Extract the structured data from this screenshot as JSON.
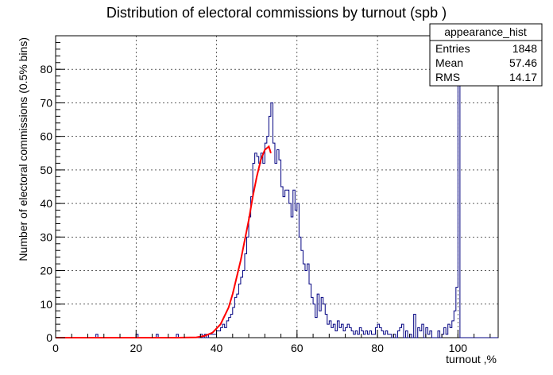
{
  "chart_data": {
    "type": "bar",
    "title": "Distribution of electoral commissions by turnout (spb )",
    "xlabel": "turnout ,%",
    "ylabel": "Number of electoral commissions (0.5% bins)",
    "xlim": [
      0,
      110
    ],
    "ylim": [
      0,
      90
    ],
    "x_ticks": [
      "0",
      "20",
      "40",
      "60",
      "80",
      "100"
    ],
    "y_ticks": [
      "0",
      "10",
      "20",
      "30",
      "40",
      "50",
      "60",
      "70",
      "80"
    ],
    "grid": true,
    "bin_width": 0.5,
    "histogram_bins": [
      [
        10,
        1
      ],
      [
        20,
        1
      ],
      [
        25,
        1
      ],
      [
        30,
        1
      ],
      [
        36,
        1
      ],
      [
        37,
        1
      ],
      [
        38,
        1
      ],
      [
        38.5,
        1
      ],
      [
        39,
        1
      ],
      [
        39.5,
        1
      ],
      [
        40,
        2
      ],
      [
        40.5,
        2
      ],
      [
        41,
        3
      ],
      [
        41.5,
        4
      ],
      [
        42,
        3
      ],
      [
        42.5,
        5
      ],
      [
        43,
        6
      ],
      [
        43.5,
        7
      ],
      [
        44,
        9
      ],
      [
        44.5,
        12
      ],
      [
        45,
        13
      ],
      [
        45.5,
        16
      ],
      [
        46,
        18
      ],
      [
        46.5,
        20
      ],
      [
        47,
        25
      ],
      [
        47.5,
        30
      ],
      [
        48,
        36
      ],
      [
        48.5,
        42
      ],
      [
        49,
        52
      ],
      [
        49.5,
        55
      ],
      [
        50,
        54
      ],
      [
        50.5,
        52
      ],
      [
        51,
        55
      ],
      [
        51.5,
        52
      ],
      [
        52,
        58
      ],
      [
        52.5,
        60
      ],
      [
        53,
        66
      ],
      [
        53.5,
        70
      ],
      [
        54,
        58
      ],
      [
        54.5,
        52
      ],
      [
        55,
        56
      ],
      [
        55.5,
        53
      ],
      [
        56,
        45
      ],
      [
        56.5,
        42
      ],
      [
        57,
        44
      ],
      [
        57.5,
        44
      ],
      [
        58,
        40
      ],
      [
        58.5,
        36
      ],
      [
        59,
        44
      ],
      [
        59.5,
        38
      ],
      [
        60,
        40
      ],
      [
        60.5,
        30
      ],
      [
        61,
        26
      ],
      [
        61.5,
        22
      ],
      [
        62,
        20
      ],
      [
        62.5,
        22
      ],
      [
        63,
        16
      ],
      [
        63.5,
        12
      ],
      [
        64,
        10
      ],
      [
        64.5,
        6
      ],
      [
        65,
        13
      ],
      [
        65.5,
        8
      ],
      [
        66,
        12
      ],
      [
        66.5,
        10
      ],
      [
        67,
        7
      ],
      [
        67.5,
        4
      ],
      [
        68,
        5
      ],
      [
        68.5,
        3
      ],
      [
        69,
        4
      ],
      [
        69.5,
        2
      ],
      [
        70,
        5
      ],
      [
        70.5,
        3
      ],
      [
        71,
        4
      ],
      [
        71.5,
        2
      ],
      [
        72,
        3
      ],
      [
        72.5,
        4
      ],
      [
        73,
        3
      ],
      [
        73.5,
        2
      ],
      [
        74,
        1
      ],
      [
        74.5,
        2
      ],
      [
        75,
        1
      ],
      [
        75.5,
        3
      ],
      [
        76,
        2
      ],
      [
        76.5,
        1
      ],
      [
        77,
        2
      ],
      [
        77.5,
        1
      ],
      [
        78,
        2
      ],
      [
        78.5,
        1
      ],
      [
        79,
        1
      ],
      [
        79.5,
        3
      ],
      [
        80,
        4
      ],
      [
        80.5,
        3
      ],
      [
        81,
        2
      ],
      [
        81.5,
        1
      ],
      [
        82,
        2
      ],
      [
        82.5,
        1
      ],
      [
        83,
        1
      ],
      [
        84,
        1
      ],
      [
        85,
        2
      ],
      [
        85.5,
        3
      ],
      [
        86,
        4
      ],
      [
        87,
        2
      ],
      [
        88,
        1
      ],
      [
        89,
        7
      ],
      [
        90,
        3
      ],
      [
        90.5,
        2
      ],
      [
        91,
        4
      ],
      [
        92,
        3
      ],
      [
        92.5,
        1
      ],
      [
        93,
        2
      ],
      [
        95,
        2
      ],
      [
        96,
        1
      ],
      [
        96.5,
        3
      ],
      [
        97,
        1
      ],
      [
        97.5,
        4
      ],
      [
        98,
        3
      ],
      [
        98.5,
        5
      ],
      [
        99,
        8
      ],
      [
        99.5,
        15
      ],
      [
        100,
        82
      ]
    ],
    "fit_curve": [
      [
        0,
        0
      ],
      [
        10,
        0
      ],
      [
        20,
        0
      ],
      [
        30,
        0
      ],
      [
        35,
        0.1
      ],
      [
        37,
        0.5
      ],
      [
        39,
        1.5
      ],
      [
        41,
        4
      ],
      [
        43,
        9
      ],
      [
        44,
        13
      ],
      [
        45,
        18
      ],
      [
        46,
        23
      ],
      [
        47,
        29
      ],
      [
        48,
        35
      ],
      [
        49,
        42
      ],
      [
        50,
        48
      ],
      [
        51,
        53
      ],
      [
        52,
        56
      ],
      [
        53,
        57
      ],
      [
        53.5,
        55
      ]
    ],
    "series_colors": {
      "histogram": "#000080",
      "fit": "#ff0000"
    },
    "stats_box": {
      "name": "appearance_hist",
      "rows": [
        {
          "label": "Entries",
          "value": "1848"
        },
        {
          "label": "Mean",
          "value": "57.46"
        },
        {
          "label": "RMS",
          "value": "14.17"
        }
      ]
    }
  }
}
